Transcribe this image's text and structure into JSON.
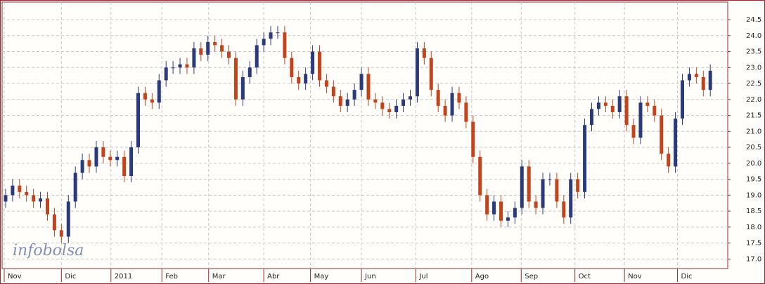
{
  "chart_data": {
    "type": "candlestick",
    "watermark": "infobolsa",
    "up_color": "#2b3a7a",
    "down_color": "#c2441d",
    "grid": true,
    "xlim": [
      0,
      104
    ],
    "ylim": [
      16.7,
      25.05
    ],
    "yticks": [
      {
        "value": 17.0,
        "label": "17.0"
      },
      {
        "value": 17.5,
        "label": "17.5"
      },
      {
        "value": 18.0,
        "label": "18.0"
      },
      {
        "value": 18.5,
        "label": "18.5"
      },
      {
        "value": 19.0,
        "label": "19.0"
      },
      {
        "value": 19.5,
        "label": "19.5"
      },
      {
        "value": 20.0,
        "label": "20.0"
      },
      {
        "value": 20.5,
        "label": "20.5"
      },
      {
        "value": 21.0,
        "label": "21.0"
      },
      {
        "value": 21.5,
        "label": "21.5"
      },
      {
        "value": 22.0,
        "label": "22.0"
      },
      {
        "value": 22.5,
        "label": "22.5"
      },
      {
        "value": 23.0,
        "label": "23.0"
      },
      {
        "value": 23.5,
        "label": "23.5"
      },
      {
        "value": 24.0,
        "label": "24.0"
      },
      {
        "value": 24.5,
        "label": "24.5"
      }
    ],
    "xticks": [
      {
        "value": 0.3,
        "label": "Nov"
      },
      {
        "value": 8.5,
        "label": "Dic"
      },
      {
        "value": 15.6,
        "label": "2011"
      },
      {
        "value": 22.9,
        "label": "Feb"
      },
      {
        "value": 29.6,
        "label": "Mar"
      },
      {
        "value": 37.5,
        "label": "Abr"
      },
      {
        "value": 44.2,
        "label": "May"
      },
      {
        "value": 51.5,
        "label": "Jun"
      },
      {
        "value": 59.3,
        "label": "Jul"
      },
      {
        "value": 67.3,
        "label": "Ago"
      },
      {
        "value": 74.4,
        "label": "Sep"
      },
      {
        "value": 82.1,
        "label": "Oct"
      },
      {
        "value": 89.2,
        "label": "Nov"
      },
      {
        "value": 96.8,
        "label": "Dic"
      }
    ],
    "open": [
      18.8,
      19.0,
      19.3,
      19.1,
      19.0,
      18.8,
      18.9,
      18.4,
      17.9,
      17.7,
      18.8,
      19.7,
      20.1,
      19.9,
      20.5,
      20.2,
      20.1,
      20.2,
      19.6,
      20.5,
      22.2,
      22.0,
      21.9,
      22.6,
      23.0,
      23.0,
      23.1,
      23.0,
      23.6,
      23.4,
      23.8,
      23.7,
      23.5,
      23.3,
      22.0,
      22.7,
      23.0,
      23.7,
      23.9,
      24.1,
      24.1,
      23.3,
      22.7,
      22.5,
      22.8,
      23.5,
      22.6,
      22.4,
      22.1,
      21.8,
      22.0,
      22.3,
      22.8,
      22.0,
      21.9,
      21.7,
      21.6,
      21.8,
      22.0,
      22.1,
      23.6,
      23.3,
      22.3,
      21.8,
      21.5,
      22.2,
      21.9,
      21.3,
      20.2,
      19.0,
      18.4,
      18.8,
      18.2,
      18.3,
      18.6,
      19.9,
      18.8,
      18.6,
      19.5,
      19.5,
      18.8,
      18.3,
      19.5,
      19.1,
      21.2,
      21.7,
      21.9,
      21.8,
      21.6,
      22.1,
      21.2,
      20.8,
      21.9,
      21.8,
      21.5,
      20.3,
      19.9,
      21.4,
      22.6,
      22.8,
      22.7,
      22.3
    ],
    "high": [
      19.2,
      19.5,
      19.5,
      19.3,
      19.2,
      19.1,
      19.1,
      18.6,
      18.1,
      19.0,
      19.9,
      20.3,
      20.3,
      20.7,
      20.7,
      20.4,
      20.4,
      20.4,
      20.7,
      22.4,
      22.4,
      22.2,
      22.8,
      23.2,
      23.2,
      23.3,
      23.3,
      23.8,
      23.8,
      24.0,
      24.0,
      23.9,
      23.7,
      23.5,
      22.9,
      23.2,
      23.9,
      24.1,
      24.3,
      24.3,
      24.3,
      23.5,
      22.9,
      23.0,
      23.7,
      23.7,
      22.8,
      22.6,
      22.3,
      22.2,
      22.5,
      23.0,
      23.0,
      22.2,
      22.1,
      21.9,
      22.0,
      22.2,
      22.3,
      23.8,
      23.8,
      23.5,
      22.5,
      22.0,
      22.4,
      22.4,
      22.1,
      21.5,
      20.4,
      19.2,
      19.0,
      19.0,
      18.5,
      18.8,
      20.1,
      20.1,
      19.0,
      19.7,
      19.7,
      19.7,
      19.0,
      19.7,
      19.7,
      21.4,
      21.9,
      22.1,
      22.1,
      22.0,
      22.3,
      22.3,
      21.4,
      22.1,
      22.1,
      22.0,
      21.7,
      20.5,
      21.6,
      22.8,
      23.0,
      23.0,
      22.9,
      23.1
    ],
    "low": [
      18.6,
      18.8,
      18.9,
      18.8,
      18.6,
      18.6,
      18.2,
      17.7,
      17.5,
      17.5,
      18.6,
      19.5,
      19.7,
      19.7,
      20.0,
      19.9,
      19.9,
      19.4,
      19.4,
      20.3,
      21.8,
      21.7,
      21.7,
      22.4,
      22.8,
      22.8,
      22.8,
      22.8,
      23.2,
      23.2,
      23.5,
      23.3,
      23.1,
      21.8,
      21.8,
      22.5,
      22.8,
      23.5,
      23.7,
      23.9,
      23.1,
      22.5,
      22.3,
      22.3,
      22.6,
      22.4,
      22.2,
      21.9,
      21.6,
      21.6,
      21.8,
      22.1,
      21.8,
      21.7,
      21.5,
      21.4,
      21.4,
      21.6,
      21.8,
      21.9,
      23.1,
      22.1,
      21.6,
      21.3,
      21.3,
      21.7,
      21.1,
      20.0,
      18.8,
      18.2,
      18.2,
      18.0,
      18.0,
      18.1,
      18.4,
      18.6,
      18.4,
      18.4,
      19.3,
      18.6,
      18.1,
      18.1,
      18.9,
      18.9,
      21.0,
      21.5,
      21.6,
      21.4,
      21.4,
      21.0,
      20.6,
      20.6,
      21.6,
      21.3,
      20.1,
      19.7,
      19.7,
      21.2,
      22.4,
      22.5,
      22.1,
      22.1
    ],
    "close": [
      19.0,
      19.3,
      19.1,
      19.0,
      18.8,
      18.9,
      18.4,
      17.9,
      17.7,
      18.8,
      19.7,
      20.1,
      19.9,
      20.5,
      20.2,
      20.1,
      20.2,
      19.6,
      20.5,
      22.2,
      22.0,
      21.9,
      22.6,
      23.0,
      23.0,
      23.1,
      23.0,
      23.6,
      23.4,
      23.8,
      23.7,
      23.5,
      23.3,
      22.0,
      22.7,
      23.0,
      23.7,
      23.9,
      24.1,
      24.1,
      23.3,
      22.7,
      22.5,
      22.8,
      23.5,
      22.6,
      22.4,
      22.1,
      21.8,
      22.0,
      22.3,
      22.8,
      22.0,
      21.9,
      21.7,
      21.6,
      21.8,
      22.0,
      22.1,
      23.6,
      23.3,
      22.3,
      21.8,
      21.5,
      22.2,
      21.9,
      21.3,
      20.2,
      19.0,
      18.4,
      18.8,
      18.2,
      18.3,
      18.6,
      19.9,
      18.8,
      18.6,
      19.5,
      19.5,
      18.8,
      18.3,
      19.5,
      19.1,
      21.2,
      21.7,
      21.9,
      21.8,
      21.6,
      22.1,
      21.2,
      20.8,
      21.9,
      21.8,
      21.5,
      20.3,
      19.9,
      21.4,
      22.6,
      22.8,
      22.7,
      22.3,
      22.9
    ]
  }
}
